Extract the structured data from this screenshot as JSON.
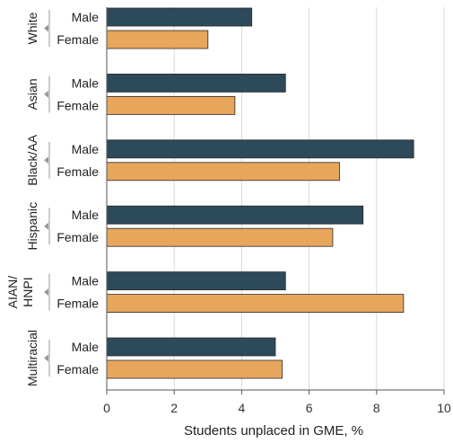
{
  "chart_data": {
    "type": "bar",
    "orientation": "horizontal",
    "xlabel": "Students unplaced in GME, %",
    "ylabel": "",
    "xlim": [
      0,
      10
    ],
    "xticks": [
      "0",
      "2",
      "4",
      "6",
      "8",
      "10"
    ],
    "grid": "vertical",
    "colors": {
      "Male": "#2d4a5b",
      "Female": "#e7a65c"
    },
    "groups": [
      {
        "label": "White",
        "bars": [
          {
            "label": "Male",
            "value": 4.3
          },
          {
            "label": "Female",
            "value": 3.0
          }
        ]
      },
      {
        "label": "Asian",
        "bars": [
          {
            "label": "Male",
            "value": 5.3
          },
          {
            "label": "Female",
            "value": 3.8
          }
        ]
      },
      {
        "label": "Black/AA",
        "bars": [
          {
            "label": "Male",
            "value": 9.1
          },
          {
            "label": "Female",
            "value": 6.9
          }
        ]
      },
      {
        "label": "Hispanic",
        "bars": [
          {
            "label": "Male",
            "value": 7.6
          },
          {
            "label": "Female",
            "value": 6.7
          }
        ]
      },
      {
        "label": "AIAN/\nHNPI",
        "bars": [
          {
            "label": "Male",
            "value": 5.3
          },
          {
            "label": "Female",
            "value": 8.8
          }
        ]
      },
      {
        "label": "Multiracial",
        "bars": [
          {
            "label": "Male",
            "value": 5.0
          },
          {
            "label": "Female",
            "value": 5.2
          }
        ]
      }
    ]
  }
}
